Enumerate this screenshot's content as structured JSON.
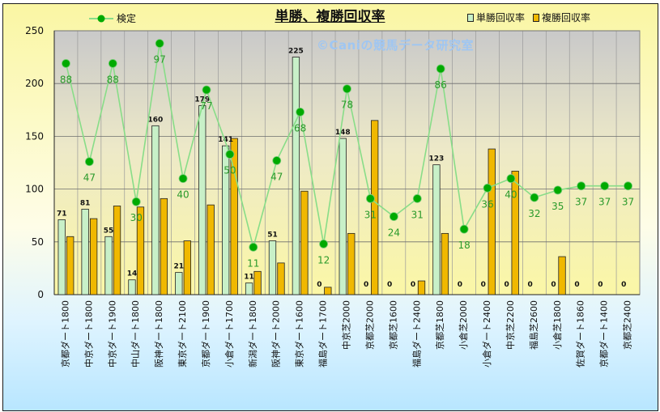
{
  "chart_data": {
    "type": "bar",
    "title": "単勝、複勝回収率",
    "watermark": "©Caniの競馬データ研究室",
    "ylim": [
      0,
      250
    ],
    "yticks": [
      0,
      50,
      100,
      150,
      200,
      250
    ],
    "grid": true,
    "legend_position": "top",
    "categories": [
      "京都ダート1800",
      "中京ダート1800",
      "中京ダート1900",
      "中山ダート1800",
      "阪神ダート1800",
      "東京ダート2100",
      "京都ダート1900",
      "小倉ダート1700",
      "新潟ダート1800",
      "阪神ダート2000",
      "東京ダート1600",
      "福島ダート1700",
      "中京芝2000",
      "京都芝2000",
      "京都芝1600",
      "福島ダート2400",
      "京都芝1800",
      "小倉芝2000",
      "小倉ダート2400",
      "中京芝2200",
      "福島芝2600",
      "小倉芝1800",
      "佐賀ダート1860",
      "京都ダート1400",
      "京都芝2400"
    ],
    "series": [
      {
        "name": "単勝回収率",
        "kind": "bar",
        "color": "#c8f0c8",
        "values": [
          71,
          81,
          55,
          14,
          160,
          21,
          179,
          141,
          11,
          51,
          225,
          0,
          148,
          0,
          0,
          0,
          123,
          0,
          0,
          0,
          0,
          0,
          0,
          0,
          0
        ],
        "labels": [
          "71",
          "81",
          "55",
          "14",
          "160",
          "21",
          "179",
          "141",
          "11",
          "51",
          "225",
          "0",
          "148",
          "0",
          "0",
          "0",
          "123",
          "0",
          "0",
          "0",
          "0",
          "0",
          "0",
          "0",
          "0"
        ]
      },
      {
        "name": "複勝回収率",
        "kind": "bar",
        "color": "#f0b800",
        "values": [
          55,
          72,
          84,
          83,
          91,
          51,
          85,
          148,
          22,
          30,
          98,
          7,
          58,
          165,
          0,
          13,
          58,
          0,
          138,
          117,
          0,
          36,
          0,
          0,
          0
        ]
      },
      {
        "name": "検定",
        "kind": "line",
        "color": "#00aa00",
        "line_color": "#88dd88",
        "values": [
          219,
          126,
          219,
          88,
          238,
          110,
          194,
          133,
          45,
          127,
          173,
          48,
          195,
          91,
          74,
          91,
          214,
          62,
          101,
          110,
          92,
          99,
          103,
          103,
          103
        ],
        "labels": [
          "88",
          "47",
          "88",
          "30",
          "97",
          "40",
          "77",
          "50",
          "11",
          "47",
          "68",
          "12",
          "78",
          "31",
          "24",
          "31",
          "86",
          "18",
          "36",
          "40",
          "32",
          "35",
          "37",
          "37",
          "37"
        ]
      }
    ]
  }
}
